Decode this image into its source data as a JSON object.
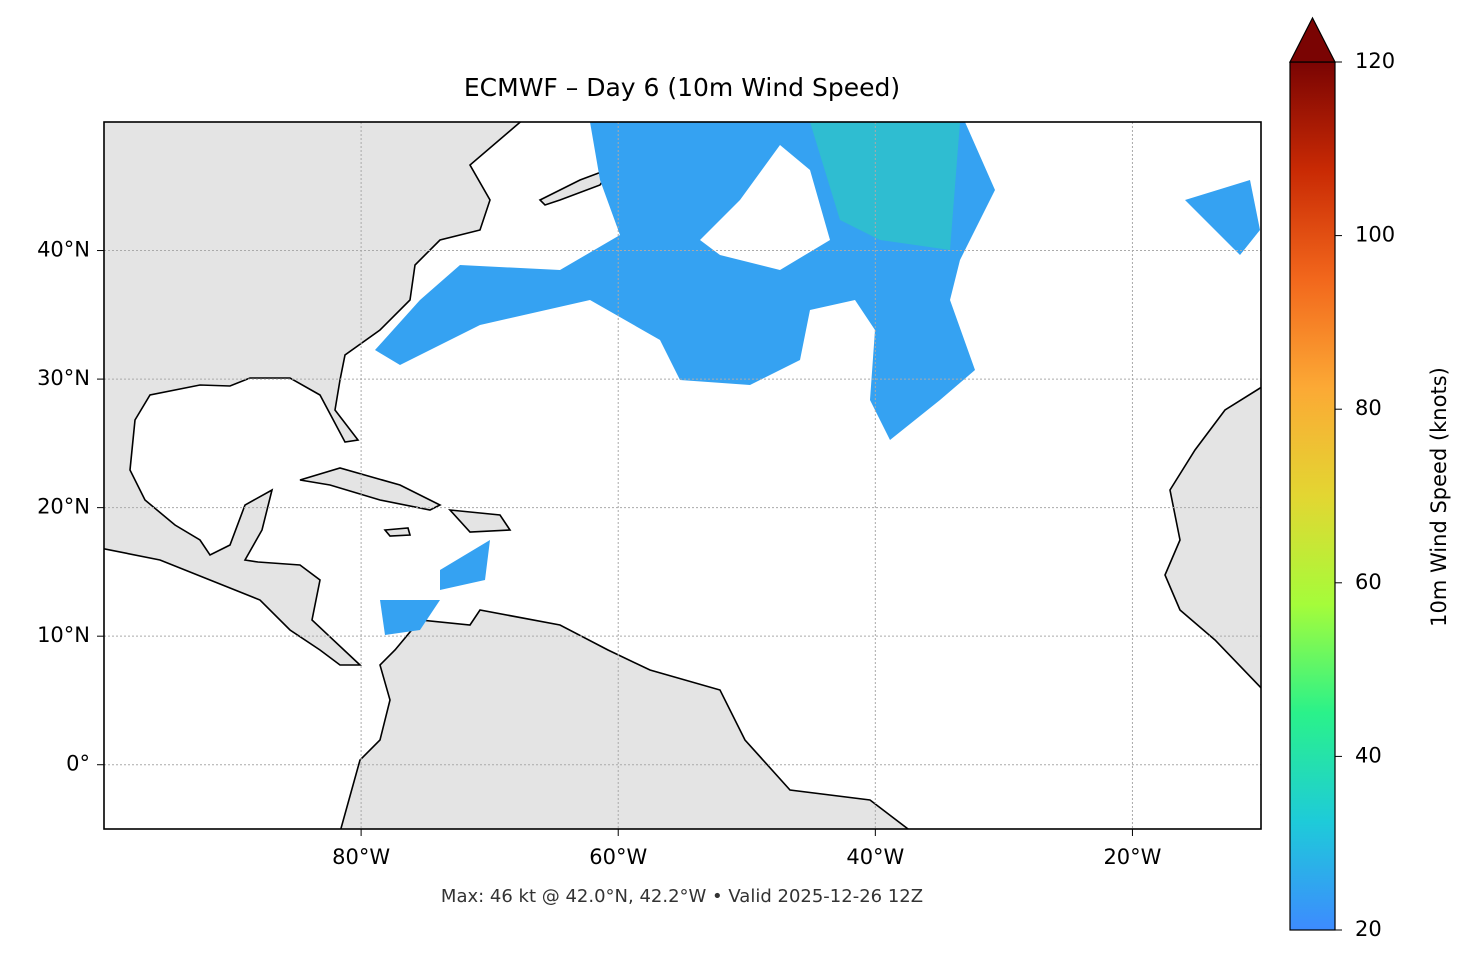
{
  "chart_data": {
    "type": "map",
    "title": "ECMWF – Day 6 (10m Wind Speed)",
    "caption": "Max: 46 kt @ 42.0°N, 42.2°W • Valid 2025-12-26 12Z",
    "xlim": [
      -100,
      -10
    ],
    "ylim": [
      -5,
      50
    ],
    "xticks": [
      {
        "value": -80,
        "label": "80°W"
      },
      {
        "value": -60,
        "label": "60°W"
      },
      {
        "value": -40,
        "label": "40°W"
      },
      {
        "value": -20,
        "label": "20°W"
      }
    ],
    "yticks": [
      {
        "value": 0,
        "label": "0°"
      },
      {
        "value": 10,
        "label": "10°N"
      },
      {
        "value": 20,
        "label": "20°N"
      },
      {
        "value": 30,
        "label": "30°N"
      },
      {
        "value": 40,
        "label": "40°N"
      }
    ],
    "grid": true,
    "colorbar": {
      "label": "10m Wind Speed (knots)",
      "lim": [
        20,
        120
      ],
      "ticks": [
        20,
        40,
        60,
        80,
        100,
        120
      ],
      "extend": "max",
      "colors": [
        "#3d8bff",
        "#1ecbd9",
        "#2af28a",
        "#a5fc3a",
        "#e3d632",
        "#fca935",
        "#f2671c",
        "#c92a04",
        "#7a0403"
      ]
    }
  }
}
